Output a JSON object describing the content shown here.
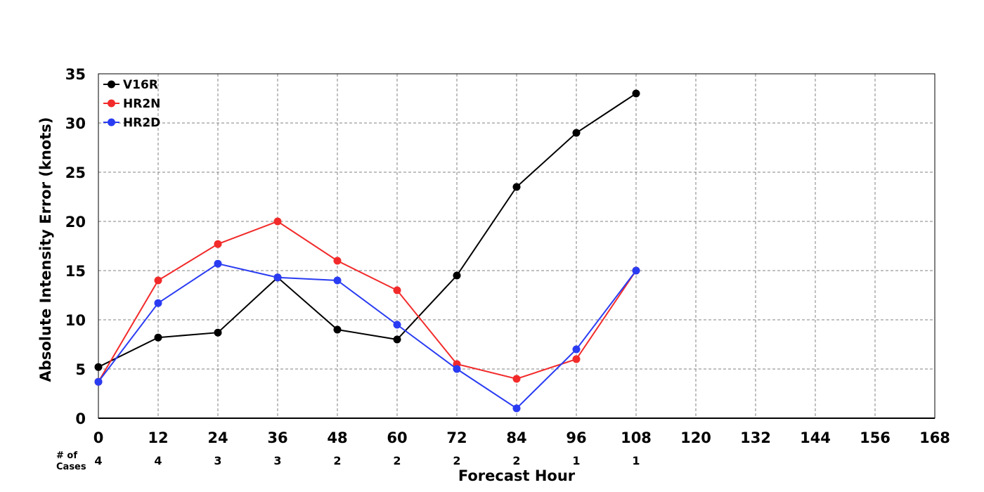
{
  "chart_data": {
    "type": "line",
    "xlabel": "Forecast Hour",
    "ylabel": "Absolute Intensity Error (knots)",
    "xlim": [
      0,
      168
    ],
    "ylim": [
      0,
      35
    ],
    "x_ticks": [
      0,
      12,
      24,
      36,
      48,
      60,
      72,
      84,
      96,
      108,
      120,
      132,
      144,
      156,
      168
    ],
    "y_ticks": [
      0,
      5,
      10,
      15,
      20,
      25,
      30,
      35
    ],
    "grid": true,
    "legend_position": "top-left",
    "cases_label": [
      "# of",
      "Cases"
    ],
    "cases": {
      "x": [
        0,
        12,
        24,
        36,
        48,
        60,
        72,
        84,
        96,
        108
      ],
      "values": [
        4,
        4,
        3,
        3,
        2,
        2,
        2,
        2,
        1,
        1
      ]
    },
    "series": [
      {
        "name": "V16R",
        "color": "#000000",
        "x": [
          0,
          12,
          24,
          36,
          48,
          60,
          72,
          84,
          96,
          108
        ],
        "values": [
          5.2,
          8.2,
          8.7,
          14.3,
          9.0,
          8.0,
          14.5,
          23.5,
          29.0,
          33.0
        ]
      },
      {
        "name": "HR2N",
        "color": "#f22a2a",
        "x": [
          0,
          12,
          24,
          36,
          48,
          60,
          72,
          84,
          96,
          108
        ],
        "values": [
          3.7,
          14.0,
          17.7,
          20.0,
          16.0,
          13.0,
          5.5,
          4.0,
          6.0,
          15.0
        ]
      },
      {
        "name": "HR2D",
        "color": "#2a3cf2",
        "x": [
          0,
          12,
          24,
          36,
          48,
          60,
          72,
          84,
          96,
          108
        ],
        "values": [
          3.7,
          11.7,
          15.7,
          14.3,
          14.0,
          9.5,
          5.0,
          1.0,
          7.0,
          15.0
        ]
      }
    ]
  }
}
